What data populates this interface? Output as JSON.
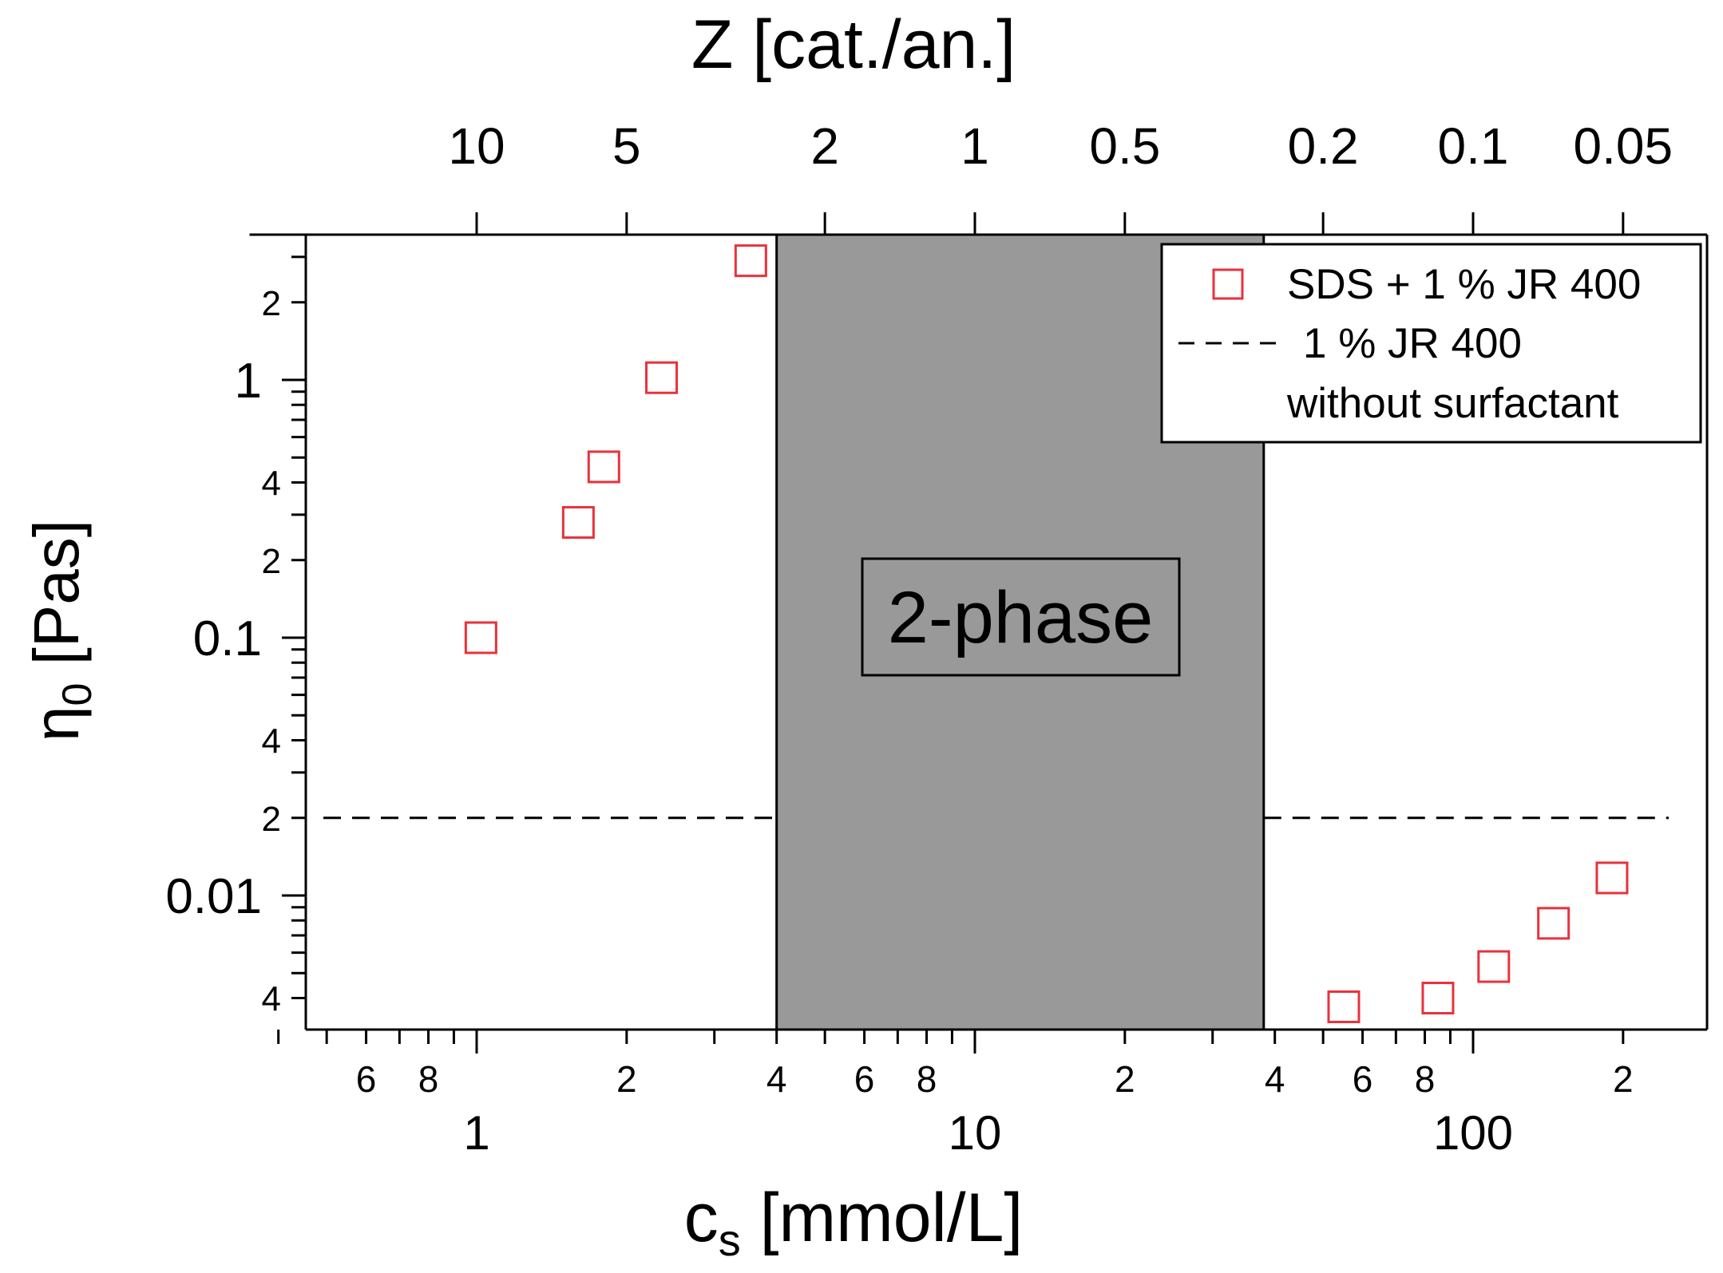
{
  "chart_data": {
    "type": "scatter",
    "x_scale": "log",
    "y_scale": "log",
    "xlabel": "c",
    "xlabel_subscript": "s",
    "xlabel_unit": " [mmol/L]",
    "ylabel": "η",
    "ylabel_subscript": "0",
    "ylabel_unit": " [Pas]",
    "top_axis_label": "Z [cat./an.]",
    "xlim": [
      0.35,
      275
    ],
    "ylim": [
      0.0033,
      3.2
    ],
    "x_major_ticks": [
      {
        "value": 1,
        "label": "1"
      },
      {
        "value": 10,
        "label": "10"
      },
      {
        "value": 100,
        "label": "100"
      }
    ],
    "x_minor_labels": [
      {
        "value": 0.6,
        "label": "6"
      },
      {
        "value": 0.8,
        "label": "8"
      },
      {
        "value": 2,
        "label": "2"
      },
      {
        "value": 4,
        "label": "4"
      },
      {
        "value": 6,
        "label": "6"
      },
      {
        "value": 8,
        "label": "8"
      },
      {
        "value": 20,
        "label": "2"
      },
      {
        "value": 40,
        "label": "4"
      },
      {
        "value": 60,
        "label": "6"
      },
      {
        "value": 80,
        "label": "8"
      },
      {
        "value": 200,
        "label": "2"
      }
    ],
    "y_major_ticks": [
      {
        "value": 0.01,
        "label": "0.01"
      },
      {
        "value": 0.1,
        "label": "0.1"
      },
      {
        "value": 1,
        "label": "1"
      }
    ],
    "y_minor_labels": [
      {
        "value": 0.004,
        "label": "4"
      },
      {
        "value": 0.02,
        "label": "2"
      },
      {
        "value": 0.04,
        "label": "4"
      },
      {
        "value": 0.2,
        "label": "2"
      },
      {
        "value": 0.4,
        "label": "4"
      },
      {
        "value": 2,
        "label": "2"
      }
    ],
    "top_ticks": [
      {
        "x": 1,
        "label": "10"
      },
      {
        "x": 2,
        "label": "5"
      },
      {
        "x": 5,
        "label": "2"
      },
      {
        "x": 10,
        "label": "1"
      },
      {
        "x": 20,
        "label": "0.5"
      },
      {
        "x": 50,
        "label": "0.2"
      },
      {
        "x": 100,
        "label": "0.1"
      },
      {
        "x": 200,
        "label": "0.05"
      }
    ],
    "series": [
      {
        "name": "SDS + 1 % JR 400",
        "marker": "open-square",
        "color": "#e8323c",
        "points": [
          {
            "x": 1.02,
            "y": 0.1
          },
          {
            "x": 1.6,
            "y": 0.28
          },
          {
            "x": 1.8,
            "y": 0.46
          },
          {
            "x": 2.35,
            "y": 1.02
          },
          {
            "x": 3.55,
            "y": 2.9
          },
          {
            "x": 55,
            "y": 0.0037
          },
          {
            "x": 85,
            "y": 0.004
          },
          {
            "x": 110,
            "y": 0.0053
          },
          {
            "x": 145,
            "y": 0.0078
          },
          {
            "x": 190,
            "y": 0.0117
          }
        ]
      }
    ],
    "reference_line": {
      "name": "1 % JR 400",
      "name_line2": "without surfactant",
      "y": 0.02,
      "style": "dashed",
      "color": "#000000"
    },
    "shaded_region": {
      "x_from": 4,
      "x_to": 38,
      "label": "2-phase",
      "color": "#999999"
    },
    "legend_position": "top-right"
  }
}
